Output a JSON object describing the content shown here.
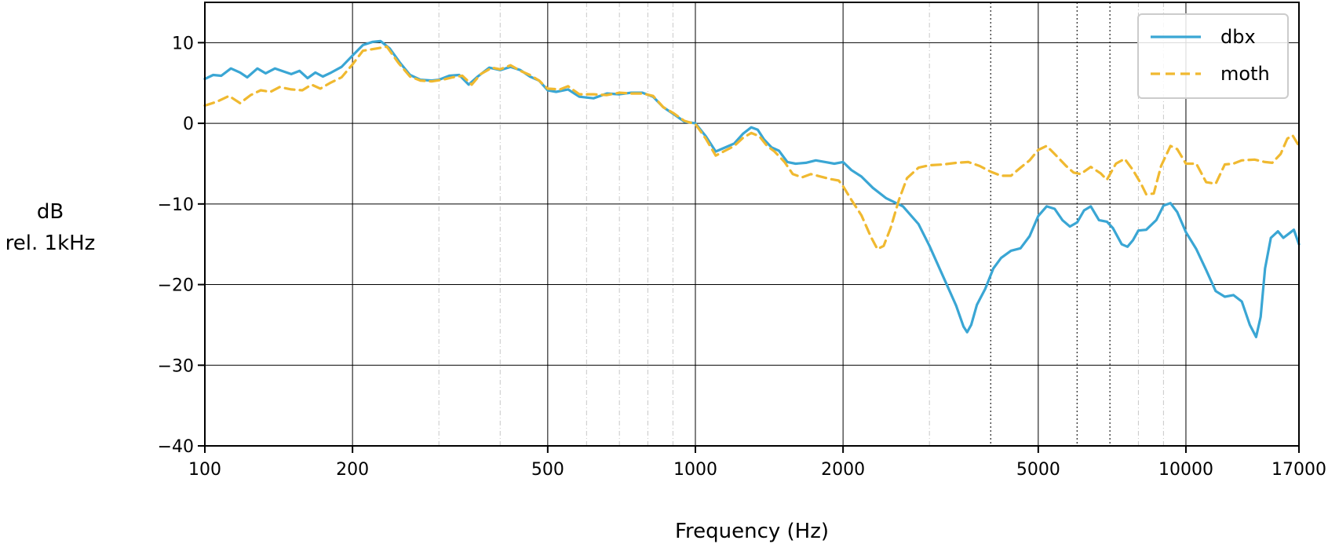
{
  "chart_data": {
    "type": "line",
    "xlabel": "Frequency (Hz)",
    "ylabel_lines": [
      "dB",
      "rel. 1kHz"
    ],
    "x_scale": "log",
    "xlim": [
      100,
      17000
    ],
    "ylim": [
      -40,
      15
    ],
    "x_ticks": [
      100,
      200,
      500,
      1000,
      2000,
      5000,
      10000,
      17000
    ],
    "x_tick_labels": [
      "100",
      "200",
      "500",
      "1000",
      "2000",
      "5000",
      "10000",
      "17000"
    ],
    "y_ticks": [
      10,
      0,
      -10,
      -20,
      -30,
      -40
    ],
    "y_tick_labels": [
      "10",
      "0",
      "−10",
      "−20",
      "−30",
      "−40"
    ],
    "minor_grid_x": [
      300,
      400,
      600,
      700,
      800,
      900,
      3000,
      8000,
      9000
    ],
    "dotted_grid_x": [
      4000,
      6000,
      7000
    ],
    "grid": true,
    "legend_position": "top-right",
    "series": [
      {
        "name": "dbx",
        "color": "#3aa6d4",
        "style": "solid",
        "points": [
          [
            100,
            5.5
          ],
          [
            104,
            6
          ],
          [
            108,
            5.9
          ],
          [
            113,
            6.8
          ],
          [
            118,
            6.3
          ],
          [
            122,
            5.7
          ],
          [
            128,
            6.8
          ],
          [
            133,
            6.2
          ],
          [
            139,
            6.8
          ],
          [
            145,
            6.4
          ],
          [
            150,
            6.1
          ],
          [
            156,
            6.5
          ],
          [
            162,
            5.6
          ],
          [
            168,
            6.3
          ],
          [
            174,
            5.8
          ],
          [
            181,
            6.3
          ],
          [
            190,
            7
          ],
          [
            200,
            8.4
          ],
          [
            210,
            9.7
          ],
          [
            220,
            10.1
          ],
          [
            228,
            10.2
          ],
          [
            238,
            9.3
          ],
          [
            250,
            7.5
          ],
          [
            262,
            6
          ],
          [
            275,
            5.4
          ],
          [
            290,
            5.3
          ],
          [
            300,
            5.4
          ],
          [
            315,
            5.9
          ],
          [
            330,
            6
          ],
          [
            345,
            4.8
          ],
          [
            360,
            5.8
          ],
          [
            380,
            6.9
          ],
          [
            400,
            6.6
          ],
          [
            420,
            7
          ],
          [
            440,
            6.6
          ],
          [
            460,
            5.8
          ],
          [
            480,
            5.3
          ],
          [
            500,
            4.1
          ],
          [
            520,
            3.9
          ],
          [
            550,
            4.2
          ],
          [
            580,
            3.3
          ],
          [
            620,
            3.1
          ],
          [
            660,
            3.7
          ],
          [
            700,
            3.6
          ],
          [
            740,
            3.8
          ],
          [
            780,
            3.8
          ],
          [
            820,
            3.3
          ],
          [
            860,
            2
          ],
          [
            900,
            1.2
          ],
          [
            950,
            0.2
          ],
          [
            1000,
            0
          ],
          [
            1050,
            -1.6
          ],
          [
            1100,
            -3.5
          ],
          [
            1150,
            -3
          ],
          [
            1200,
            -2.5
          ],
          [
            1250,
            -1.3
          ],
          [
            1300,
            -0.5
          ],
          [
            1340,
            -0.8
          ],
          [
            1380,
            -2
          ],
          [
            1430,
            -3
          ],
          [
            1480,
            -3.4
          ],
          [
            1540,
            -4.8
          ],
          [
            1600,
            -5
          ],
          [
            1680,
            -4.9
          ],
          [
            1760,
            -4.6
          ],
          [
            1840,
            -4.8
          ],
          [
            1920,
            -5
          ],
          [
            2000,
            -4.8
          ],
          [
            2080,
            -5.8
          ],
          [
            2180,
            -6.6
          ],
          [
            2300,
            -8
          ],
          [
            2450,
            -9.3
          ],
          [
            2650,
            -10.3
          ],
          [
            2850,
            -12.5
          ],
          [
            3000,
            -15.2
          ],
          [
            3200,
            -19
          ],
          [
            3400,
            -22.6
          ],
          [
            3520,
            -25.2
          ],
          [
            3580,
            -25.9
          ],
          [
            3650,
            -25
          ],
          [
            3750,
            -22.5
          ],
          [
            3900,
            -20.5
          ],
          [
            4050,
            -18
          ],
          [
            4200,
            -16.7
          ],
          [
            4400,
            -15.8
          ],
          [
            4600,
            -15.5
          ],
          [
            4800,
            -14
          ],
          [
            5000,
            -11.5
          ],
          [
            5200,
            -10.3
          ],
          [
            5400,
            -10.6
          ],
          [
            5600,
            -12
          ],
          [
            5800,
            -12.8
          ],
          [
            6000,
            -12.3
          ],
          [
            6200,
            -10.8
          ],
          [
            6400,
            -10.3
          ],
          [
            6650,
            -12
          ],
          [
            6900,
            -12.2
          ],
          [
            7100,
            -13
          ],
          [
            7400,
            -15
          ],
          [
            7600,
            -15.3
          ],
          [
            7800,
            -14.5
          ],
          [
            8000,
            -13.3
          ],
          [
            8300,
            -13.2
          ],
          [
            8700,
            -12
          ],
          [
            9000,
            -10.2
          ],
          [
            9300,
            -9.9
          ],
          [
            9600,
            -11
          ],
          [
            10000,
            -13.5
          ],
          [
            10500,
            -15.6
          ],
          [
            11000,
            -18.2
          ],
          [
            11500,
            -20.8
          ],
          [
            12000,
            -21.5
          ],
          [
            12500,
            -21.3
          ],
          [
            13000,
            -22.1
          ],
          [
            13500,
            -25
          ],
          [
            13900,
            -26.5
          ],
          [
            14200,
            -24
          ],
          [
            14500,
            -18
          ],
          [
            14900,
            -14.2
          ],
          [
            15400,
            -13.4
          ],
          [
            15800,
            -14.2
          ],
          [
            16200,
            -13.7
          ],
          [
            16600,
            -13.2
          ],
          [
            17000,
            -15
          ]
        ]
      },
      {
        "name": "moth",
        "color": "#f0b930",
        "style": "dashed",
        "points": [
          [
            100,
            2.2
          ],
          [
            106,
            2.7
          ],
          [
            112,
            3.4
          ],
          [
            118,
            2.5
          ],
          [
            124,
            3.5
          ],
          [
            130,
            4.1
          ],
          [
            136,
            3.9
          ],
          [
            142,
            4.5
          ],
          [
            150,
            4.2
          ],
          [
            158,
            4.1
          ],
          [
            165,
            4.8
          ],
          [
            172,
            4.3
          ],
          [
            180,
            5
          ],
          [
            190,
            5.7
          ],
          [
            200,
            7.3
          ],
          [
            210,
            9
          ],
          [
            225,
            9.3
          ],
          [
            235,
            9.5
          ],
          [
            248,
            7.5
          ],
          [
            262,
            5.8
          ],
          [
            275,
            5.3
          ],
          [
            290,
            5.2
          ],
          [
            305,
            5.4
          ],
          [
            320,
            5.7
          ],
          [
            335,
            5.9
          ],
          [
            350,
            4.8
          ],
          [
            365,
            6.1
          ],
          [
            385,
            6.9
          ],
          [
            400,
            6.7
          ],
          [
            420,
            7.2
          ],
          [
            440,
            6.5
          ],
          [
            460,
            6
          ],
          [
            480,
            5.3
          ],
          [
            500,
            4.3
          ],
          [
            530,
            4.2
          ],
          [
            550,
            4.6
          ],
          [
            580,
            3.6
          ],
          [
            620,
            3.6
          ],
          [
            660,
            3.5
          ],
          [
            700,
            3.8
          ],
          [
            740,
            3.7
          ],
          [
            780,
            3.7
          ],
          [
            820,
            3.4
          ],
          [
            860,
            2
          ],
          [
            900,
            1.3
          ],
          [
            950,
            0.3
          ],
          [
            1000,
            -0.1
          ],
          [
            1050,
            -1.9
          ],
          [
            1100,
            -4
          ],
          [
            1150,
            -3.4
          ],
          [
            1200,
            -2.8
          ],
          [
            1250,
            -1.8
          ],
          [
            1300,
            -1.2
          ],
          [
            1350,
            -1.6
          ],
          [
            1400,
            -2.8
          ],
          [
            1450,
            -3.5
          ],
          [
            1520,
            -4.8
          ],
          [
            1580,
            -6.3
          ],
          [
            1650,
            -6.7
          ],
          [
            1720,
            -6.3
          ],
          [
            1800,
            -6.6
          ],
          [
            1880,
            -6.9
          ],
          [
            1960,
            -7.1
          ],
          [
            2000,
            -7.8
          ],
          [
            2080,
            -9.5
          ],
          [
            2180,
            -11.4
          ],
          [
            2280,
            -14.1
          ],
          [
            2350,
            -15.6
          ],
          [
            2420,
            -15.2
          ],
          [
            2500,
            -13
          ],
          [
            2600,
            -9.5
          ],
          [
            2700,
            -6.8
          ],
          [
            2850,
            -5.5
          ],
          [
            3000,
            -5.2
          ],
          [
            3200,
            -5.1
          ],
          [
            3400,
            -4.9
          ],
          [
            3600,
            -4.8
          ],
          [
            3800,
            -5.3
          ],
          [
            4000,
            -6
          ],
          [
            4200,
            -6.5
          ],
          [
            4400,
            -6.5
          ],
          [
            4600,
            -5.5
          ],
          [
            4800,
            -4.6
          ],
          [
            5000,
            -3.3
          ],
          [
            5200,
            -2.8
          ],
          [
            5400,
            -3.8
          ],
          [
            5700,
            -5.3
          ],
          [
            5900,
            -6.1
          ],
          [
            6100,
            -6.3
          ],
          [
            6400,
            -5.4
          ],
          [
            6700,
            -6.2
          ],
          [
            6900,
            -7
          ],
          [
            7200,
            -5
          ],
          [
            7500,
            -4.4
          ],
          [
            7800,
            -5.8
          ],
          [
            8100,
            -7.5
          ],
          [
            8300,
            -8.8
          ],
          [
            8600,
            -8.7
          ],
          [
            8900,
            -5.3
          ],
          [
            9300,
            -2.8
          ],
          [
            9600,
            -3.2
          ],
          [
            10000,
            -5
          ],
          [
            10500,
            -5
          ],
          [
            11000,
            -7.3
          ],
          [
            11500,
            -7.5
          ],
          [
            12000,
            -5.1
          ],
          [
            12500,
            -5
          ],
          [
            13000,
            -4.6
          ],
          [
            13800,
            -4.5
          ],
          [
            14500,
            -4.8
          ],
          [
            15000,
            -4.9
          ],
          [
            15600,
            -3.8
          ],
          [
            16100,
            -1.9
          ],
          [
            16500,
            -1.5
          ],
          [
            17000,
            -2.8
          ]
        ]
      }
    ]
  }
}
